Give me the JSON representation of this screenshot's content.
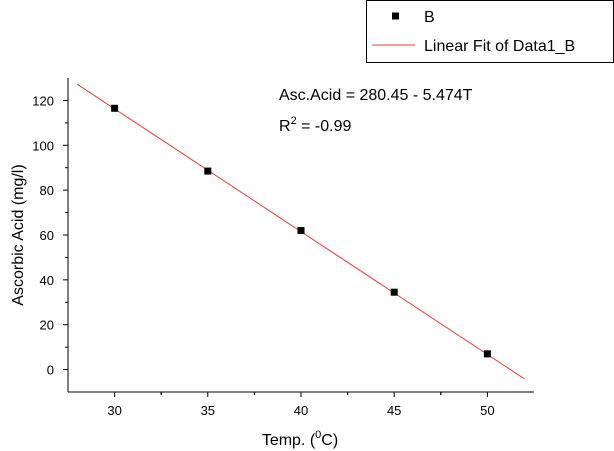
{
  "chart_data": {
    "type": "scatter",
    "xlabel": {
      "text": "Temp. (",
      "sup": "0",
      "after": "C)"
    },
    "ylabel": "Ascorbic Acid (mg/l)",
    "annotations": [
      "Asc.Acid = 280.45 - 5.474T",
      {
        "text": "R",
        "sup": "2",
        "after": " = -0.99"
      }
    ],
    "xlim": [
      27.5,
      52.5
    ],
    "xticks": [
      30,
      35,
      40,
      45,
      50
    ],
    "ylim": [
      -10,
      130
    ],
    "yticks": [
      0,
      20,
      40,
      60,
      80,
      100,
      120
    ],
    "grid": false,
    "legend": "top-right",
    "series": [
      {
        "name": "B",
        "color": "#000000",
        "style": "marker",
        "x": [
          30,
          35,
          40,
          45,
          50
        ],
        "values": [
          116.5,
          88.5,
          62,
          34.5,
          7
        ]
      },
      {
        "name": "Linear Fit of Data1_B",
        "color": "#e8392d",
        "style": "line",
        "x": [
          28,
          52
        ],
        "values": [
          127.2,
          -4.2
        ]
      }
    ]
  }
}
